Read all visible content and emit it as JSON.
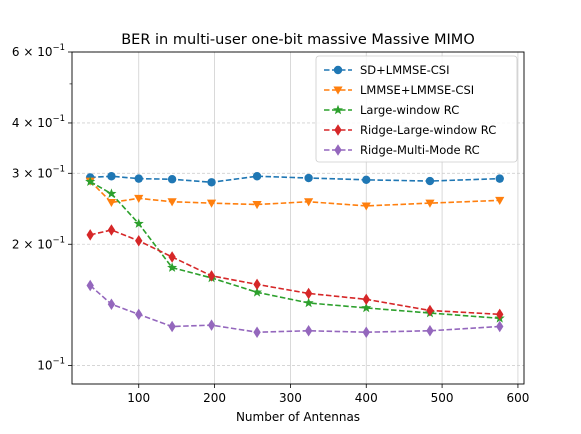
{
  "chart_data": {
    "type": "line",
    "title": "BER in multi-user one-bit massive Massive MIMO",
    "xlabel": "Number of Antennas",
    "ylabel": "",
    "xscale": "linear",
    "yscale": "log",
    "xlim": [
      12,
      608
    ],
    "ylim": [
      0.09,
      0.6
    ],
    "grid": true,
    "legend_position": "top-right",
    "xticks": [
      {
        "value": 100,
        "label": "100"
      },
      {
        "value": 200,
        "label": "200"
      },
      {
        "value": 300,
        "label": "300"
      },
      {
        "value": 400,
        "label": "400"
      },
      {
        "value": 500,
        "label": "500"
      },
      {
        "value": 600,
        "label": "600"
      }
    ],
    "yticks": [
      {
        "value": 0.1,
        "base": "10",
        "exp": "−1",
        "coef": ""
      },
      {
        "value": 0.2,
        "base": "10",
        "exp": "−1",
        "coef": "2 × "
      },
      {
        "value": 0.3,
        "base": "10",
        "exp": "−1",
        "coef": "3 × "
      },
      {
        "value": 0.4,
        "base": "10",
        "exp": "−1",
        "coef": "4 × "
      },
      {
        "value": 0.6,
        "base": "10",
        "exp": "−1",
        "coef": "6 × "
      }
    ],
    "x": [
      36,
      64,
      100,
      144,
      196,
      256,
      324,
      400,
      484,
      576
    ],
    "series": [
      {
        "name": "SD+LMMSE-CSI",
        "color": "#1f77b4",
        "marker": "circle",
        "values": [
          0.293,
          0.295,
          0.291,
          0.29,
          0.285,
          0.295,
          0.292,
          0.289,
          0.287,
          0.291
        ]
      },
      {
        "name": "LMMSE+LMMSE-CSI",
        "color": "#ff7f0e",
        "marker": "triangle-down",
        "values": [
          0.287,
          0.254,
          0.26,
          0.255,
          0.253,
          0.251,
          0.255,
          0.249,
          0.253,
          0.257
        ]
      },
      {
        "name": "Large-window RC",
        "color": "#2ca02c",
        "marker": "star",
        "values": [
          0.286,
          0.267,
          0.225,
          0.175,
          0.165,
          0.152,
          0.143,
          0.139,
          0.135,
          0.131
        ]
      },
      {
        "name": "Ridge-Large-window RC",
        "color": "#d62728",
        "marker": "diamond",
        "values": [
          0.211,
          0.217,
          0.204,
          0.186,
          0.167,
          0.159,
          0.151,
          0.146,
          0.137,
          0.134
        ]
      },
      {
        "name": "Ridge-Multi-Mode RC",
        "color": "#9467bd",
        "marker": "diamond",
        "values": [
          0.158,
          0.142,
          0.134,
          0.125,
          0.126,
          0.121,
          0.122,
          0.121,
          0.122,
          0.125
        ]
      }
    ]
  }
}
